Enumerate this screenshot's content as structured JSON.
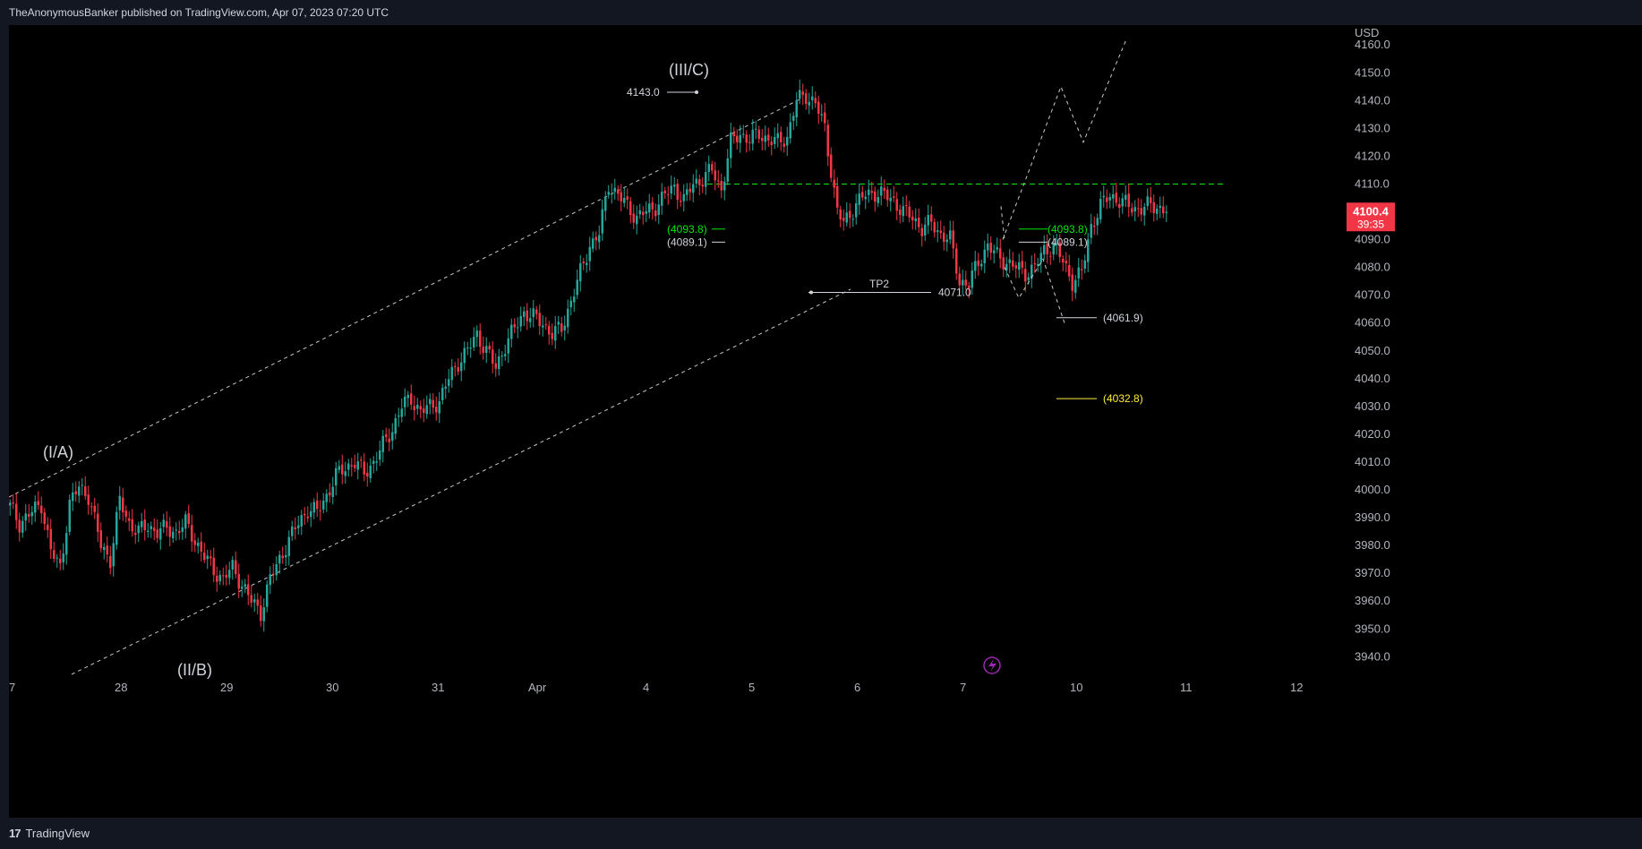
{
  "header": {
    "published_line": "TheAnonymousBanker published on TradingView.com, Apr 07, 2023 07:20 UTC"
  },
  "footer": {
    "brand": "TradingView",
    "logo_icon": "tradingview-logo-icon"
  },
  "colors": {
    "up": "#26a69a",
    "down": "#f23645",
    "green_level": "#00e60a",
    "yellow_level": "#ffeb3b",
    "price_badge": "#f23645",
    "dashed": "#c8c8c8",
    "flash_icon": "#9c27b0"
  },
  "chart_data": {
    "type": "candlestick",
    "currency": "USD",
    "x_tick_labels": [
      "7",
      "28",
      "29",
      "30",
      "31",
      "Apr",
      "4",
      "5",
      "6",
      "7",
      "10",
      "11",
      "12"
    ],
    "y_ticks": [
      3940.0,
      3950.0,
      3960.0,
      3970.0,
      3980.0,
      3990.0,
      4000.0,
      4010.0,
      4020.0,
      4030.0,
      4040.0,
      4050.0,
      4060.0,
      4070.0,
      4080.0,
      4090.0,
      4100.0,
      4110.0,
      4120.0,
      4130.0,
      4140.0,
      4150.0,
      4160.0
    ],
    "ylim": [
      3934.5,
      4163.2
    ],
    "current_price": {
      "value": "4100.4",
      "countdown": "39:35",
      "level": 4100.4
    },
    "close_path": [
      [
        0,
        3994
      ],
      [
        3,
        3988
      ],
      [
        6,
        3991
      ],
      [
        10,
        3995
      ],
      [
        13,
        3978
      ],
      [
        16,
        3972
      ],
      [
        19,
        3995
      ],
      [
        22,
        4001
      ],
      [
        25,
        3998
      ],
      [
        29,
        3980
      ],
      [
        32,
        3975
      ],
      [
        35,
        3996
      ],
      [
        38,
        3988
      ],
      [
        41,
        3985
      ],
      [
        44,
        3987
      ],
      [
        47,
        3985
      ],
      [
        50,
        3986
      ],
      [
        53,
        3985
      ],
      [
        56,
        3988
      ],
      [
        59,
        3982
      ],
      [
        62,
        3976
      ],
      [
        65,
        3971
      ],
      [
        68,
        3968
      ],
      [
        71,
        3972
      ],
      [
        74,
        3966
      ],
      [
        77,
        3960
      ],
      [
        80,
        3956
      ],
      [
        83,
        3968
      ],
      [
        86,
        3975
      ],
      [
        89,
        3982
      ],
      [
        92,
        3988
      ],
      [
        95,
        3993
      ],
      [
        98,
        3992
      ],
      [
        101,
        3998
      ],
      [
        104,
        4005
      ],
      [
        107,
        4008
      ],
      [
        110,
        4010
      ],
      [
        113,
        4006
      ],
      [
        116,
        4010
      ],
      [
        119,
        4016
      ],
      [
        122,
        4022
      ],
      [
        125,
        4030
      ],
      [
        128,
        4033
      ],
      [
        131,
        4028
      ],
      [
        134,
        4030
      ],
      [
        137,
        4032
      ],
      [
        140,
        4040
      ],
      [
        143,
        4046
      ],
      [
        146,
        4050
      ],
      [
        149,
        4056
      ],
      [
        152,
        4050
      ],
      [
        155,
        4044
      ],
      [
        158,
        4052
      ],
      [
        161,
        4058
      ],
      [
        164,
        4064
      ],
      [
        167,
        4062
      ],
      [
        170,
        4060
      ],
      [
        173,
        4056
      ],
      [
        176,
        4058
      ],
      [
        179,
        4068
      ],
      [
        182,
        4078
      ],
      [
        185,
        4088
      ],
      [
        188,
        4092
      ],
      [
        191,
        4110
      ],
      [
        194,
        4106
      ],
      [
        197,
        4102
      ],
      [
        200,
        4098
      ],
      [
        203,
        4100
      ],
      [
        206,
        4102
      ],
      [
        209,
        4106
      ],
      [
        212,
        4109
      ],
      [
        215,
        4104
      ],
      [
        218,
        4110
      ],
      [
        221,
        4112
      ],
      [
        224,
        4115
      ],
      [
        227,
        4108
      ],
      [
        230,
        4125
      ],
      [
        233,
        4128
      ],
      [
        236,
        4126
      ],
      [
        239,
        4128
      ],
      [
        242,
        4126
      ],
      [
        245,
        4125
      ],
      [
        248,
        4127
      ],
      [
        251,
        4140
      ],
      [
        254,
        4142
      ],
      [
        257,
        4139
      ],
      [
        260,
        4130
      ],
      [
        262,
        4115
      ],
      [
        264,
        4100
      ],
      [
        266,
        4096
      ],
      [
        268,
        4099
      ],
      [
        270,
        4103
      ],
      [
        273,
        4106
      ],
      [
        276,
        4107
      ],
      [
        279,
        4106
      ],
      [
        282,
        4104
      ],
      [
        285,
        4100
      ],
      [
        288,
        4098
      ],
      [
        291,
        4094
      ],
      [
        294,
        4096
      ],
      [
        297,
        4092
      ],
      [
        300,
        4090
      ],
      [
        303,
        4075
      ],
      [
        306,
        4074
      ],
      [
        309,
        4082
      ],
      [
        312,
        4088
      ],
      [
        315,
        4084
      ],
      [
        318,
        4082
      ],
      [
        321,
        4080
      ],
      [
        324,
        4078
      ],
      [
        327,
        4080
      ],
      [
        330,
        4086
      ],
      [
        333,
        4088
      ],
      [
        336,
        4082
      ],
      [
        339,
        4075
      ],
      [
        342,
        4078
      ],
      [
        345,
        4095
      ],
      [
        348,
        4102
      ],
      [
        351,
        4106
      ],
      [
        354,
        4104
      ],
      [
        357,
        4102
      ],
      [
        360,
        4101
      ],
      [
        363,
        4102
      ],
      [
        366,
        4102
      ],
      [
        369,
        4100
      ]
    ],
    "levels": [
      {
        "label": "4143.0",
        "price": 4143.0,
        "color": "#d1d4dc"
      },
      {
        "label": "(4093.8)",
        "price": 4093.8,
        "color": "#00e60a"
      },
      {
        "label": "(4089.1)",
        "price": 4089.1,
        "color": "#d1d4dc"
      },
      {
        "label": "4071.0",
        "price": 4071.0,
        "color": "#d1d4dc"
      },
      {
        "label": "(4093.8)",
        "price": 4093.8,
        "color": "#00e60a"
      },
      {
        "label": "(4089.1)",
        "price": 4089.1,
        "color": "#d1d4dc"
      },
      {
        "label": "(4061.9)",
        "price": 4061.9,
        "color": "#d1d4dc"
      },
      {
        "label": "(4032.8)",
        "price": 4032.8,
        "color": "#ffeb3b"
      }
    ],
    "resistance_level": 4110.0,
    "annotations": {
      "wave_1": "(I/A)",
      "wave_2": "(II/B)",
      "wave_3": "(III/C)",
      "tp_label": "TP2"
    },
    "projection_path_up": [
      4090,
      4145,
      4125,
      4162
    ],
    "projection_path_down": [
      4080,
      4069,
      4083,
      4059
    ]
  }
}
